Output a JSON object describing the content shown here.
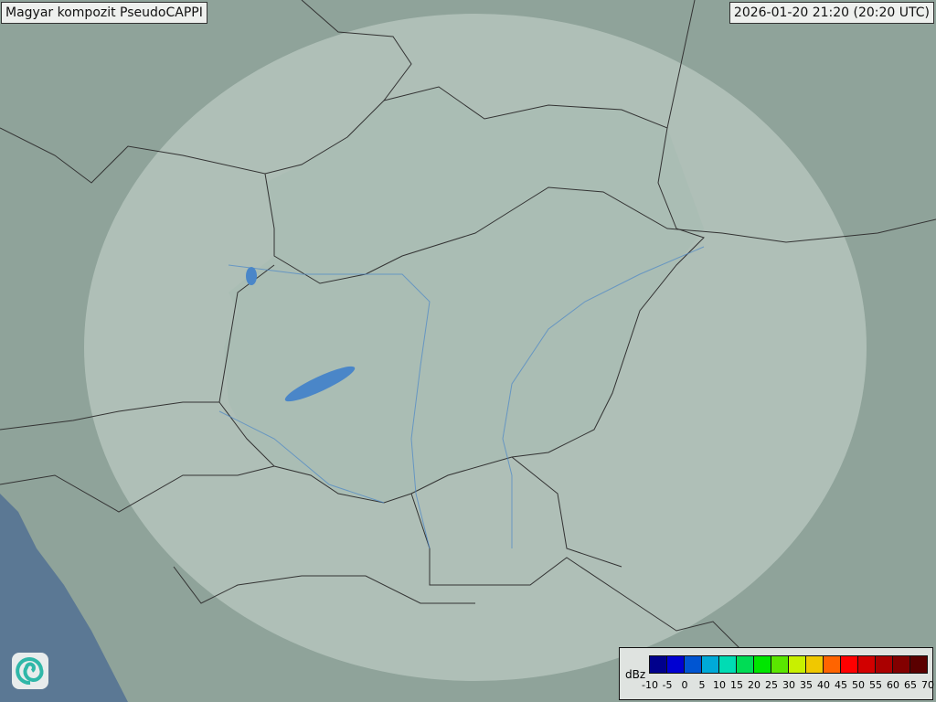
{
  "title": "Magyar kompozit  PseudoCAPPI",
  "timestamp": "2026-01-20 21:20 (20:20 UTC)",
  "legend": {
    "unit": "dBz",
    "ticks": [
      "-10",
      "-5",
      "0",
      "5",
      "10",
      "15",
      "20",
      "25",
      "30",
      "35",
      "40",
      "45",
      "50",
      "55",
      "60",
      "65",
      "70"
    ],
    "colors": [
      "#00008c",
      "#0000d2",
      "#0055d2",
      "#00aad8",
      "#00dcb4",
      "#00dc55",
      "#00e600",
      "#5ae600",
      "#c8f000",
      "#f0c800",
      "#ff6400",
      "#ff0000",
      "#d20000",
      "#aa0000",
      "#820000",
      "#5a0000"
    ]
  },
  "colors": {
    "land": "#8fa39a",
    "coverage": "#c8d6cf",
    "sea": "#5b7894",
    "water": "#4a86c8",
    "border": "#333333"
  },
  "logo_icon": "omsz-swirl-logo"
}
